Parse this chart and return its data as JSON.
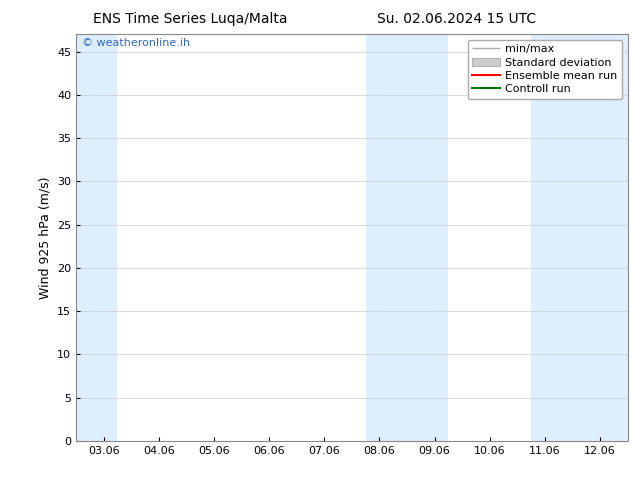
{
  "title_left": "ENS Time Series Luqa/Malta",
  "title_right": "Su. 02.06.2024 15 UTC",
  "ylabel": "Wind 925 hPa (m/s)",
  "watermark": "© weatheronline.ih",
  "watermark_color": "#3366cc",
  "background_color": "#ffffff",
  "plot_bg_color": "#ffffff",
  "x_tick_labels": [
    "03.06",
    "04.06",
    "05.06",
    "06.06",
    "07.06",
    "08.06",
    "09.06",
    "10.06",
    "11.06",
    "12.06"
  ],
  "x_tick_pos": [
    0,
    1,
    2,
    3,
    4,
    5,
    6,
    7,
    8,
    9
  ],
  "xlim": [
    -0.5,
    9.5
  ],
  "ylim": [
    0,
    47
  ],
  "yticks": [
    0,
    5,
    10,
    15,
    20,
    25,
    30,
    35,
    40,
    45
  ],
  "shaded_bands": [
    {
      "x_start": -0.5,
      "x_end": 0.25,
      "color": "#ddeeff"
    },
    {
      "x_start": 4.75,
      "x_end": 6.25,
      "color": "#ddeeff"
    },
    {
      "x_start": 7.75,
      "x_end": 9.5,
      "color": "#ddeeff"
    }
  ],
  "title_fontsize": 10,
  "axis_label_fontsize": 9,
  "tick_fontsize": 8,
  "legend_fontsize": 8,
  "minmax_color": "#aaaaaa",
  "std_color": "#cccccc",
  "ens_color": "#ff0000",
  "ctrl_color": "#007700"
}
